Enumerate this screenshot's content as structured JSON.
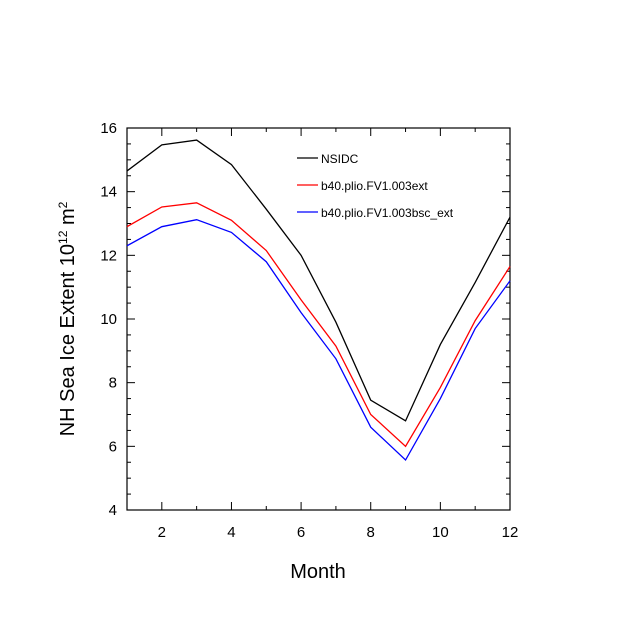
{
  "chart_data": {
    "type": "line",
    "xlabel": "Month",
    "ylabel_main": "NH Sea Ice Extent 10",
    "ylabel_exp1": "12",
    "ylabel_unit": " m",
    "ylabel_exp2": "2",
    "xlim": [
      1,
      12
    ],
    "ylim": [
      4,
      16
    ],
    "xticks": [
      2,
      4,
      6,
      8,
      10,
      12
    ],
    "yticks": [
      4,
      6,
      8,
      10,
      12,
      14,
      16
    ],
    "x": [
      1,
      2,
      3,
      4,
      5,
      6,
      7,
      8,
      9,
      10,
      11,
      12
    ],
    "legend_position": "top-right",
    "series": [
      {
        "name": "NSIDC",
        "color": "#000000",
        "values": [
          14.65,
          15.47,
          15.62,
          14.85,
          13.45,
          12.0,
          9.9,
          7.45,
          6.8,
          9.2,
          11.15,
          13.2
        ]
      },
      {
        "name": "b40.plio.FV1.003ext",
        "color": "#ff0000",
        "values": [
          12.9,
          13.52,
          13.65,
          13.1,
          12.15,
          10.6,
          9.15,
          7.0,
          6.0,
          7.85,
          9.95,
          11.65
        ]
      },
      {
        "name": "b40.plio.FV1.003bsc_ext",
        "color": "#0000ff",
        "values": [
          12.3,
          12.9,
          13.12,
          12.72,
          11.8,
          10.2,
          8.75,
          6.6,
          5.57,
          7.5,
          9.7,
          11.2
        ]
      }
    ]
  }
}
